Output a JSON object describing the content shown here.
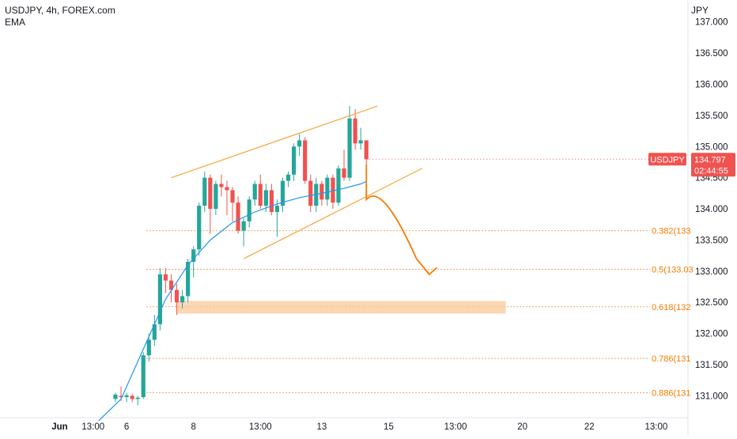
{
  "legend": {
    "symbol": "USDJPY, 4h, FOREX.com",
    "indicator": "EMA"
  },
  "currency": "JPY",
  "price_badge": {
    "symbol": "USDJPY",
    "price": "134.797",
    "countdown": "02:44:55",
    "value": 134.797
  },
  "colors": {
    "up": "#26a69a",
    "down": "#ef5350",
    "ema": "#2196f3",
    "drawing": "#f7a43b",
    "arrow": "#f57c00",
    "zone": "#f9c898",
    "fib_line": "#f5a25a",
    "fib_text": "#f57c00",
    "grid_text": "#131722",
    "badge_left": "#ef5350",
    "badge_right": "#ef5350"
  },
  "chart_data": {
    "type": "candlestick",
    "title": "USDJPY, 4h, FOREX.com",
    "ylabel": "JPY",
    "ylim": [
      130.65,
      137.25
    ],
    "y_ticks": [
      131.0,
      131.5,
      132.0,
      132.5,
      133.0,
      133.5,
      134.0,
      134.5,
      135.0,
      135.5,
      136.0,
      136.5,
      137.0
    ],
    "y_tick_labels": [
      "131.000",
      "131.500",
      "132.000",
      "132.500",
      "133.000",
      "133.500",
      "134.000",
      "134.500",
      "135.000",
      "135.500",
      "136.000",
      "136.500",
      "137.000"
    ],
    "x_ticks": [
      {
        "label": "Jun",
        "index": -10
      },
      {
        "label": "13:00",
        "index": -4
      },
      {
        "label": "6",
        "index": 2
      },
      {
        "label": "8",
        "index": 14
      },
      {
        "label": "13:00",
        "index": 26
      },
      {
        "label": "13",
        "index": 37
      },
      {
        "label": "15",
        "index": 49
      },
      {
        "label": "13:00",
        "index": 61
      },
      {
        "label": "20",
        "index": 73
      },
      {
        "label": "22",
        "index": 85
      },
      {
        "label": "13:00",
        "index": 97
      }
    ],
    "candles": [
      [
        130.95,
        131.05,
        130.9,
        131.02
      ],
      [
        131.0,
        131.15,
        130.92,
        130.98
      ],
      [
        130.98,
        131.05,
        130.9,
        131.01
      ],
      [
        131.0,
        131.03,
        130.9,
        130.95
      ],
      [
        130.95,
        131.0,
        130.85,
        130.97
      ],
      [
        130.98,
        131.7,
        130.95,
        131.65
      ],
      [
        131.65,
        132.0,
        131.55,
        131.9
      ],
      [
        131.9,
        132.3,
        131.8,
        132.15
      ],
      [
        132.15,
        133.05,
        132.05,
        132.95
      ],
      [
        132.95,
        133.05,
        132.65,
        132.85
      ],
      [
        132.85,
        132.95,
        132.5,
        132.7
      ],
      [
        132.7,
        132.8,
        132.3,
        132.5
      ],
      [
        132.5,
        132.7,
        132.4,
        132.6
      ],
      [
        132.6,
        133.2,
        132.5,
        133.15
      ],
      [
        133.15,
        133.4,
        132.9,
        133.35
      ],
      [
        133.35,
        134.1,
        133.25,
        134.05
      ],
      [
        134.05,
        134.6,
        133.95,
        134.5
      ],
      [
        134.5,
        134.55,
        133.6,
        134.0
      ],
      [
        134.0,
        134.45,
        133.9,
        134.4
      ],
      [
        134.4,
        134.55,
        134.2,
        134.35
      ],
      [
        134.35,
        134.45,
        133.9,
        134.3
      ],
      [
        134.3,
        134.35,
        133.8,
        134.1
      ],
      [
        134.1,
        134.2,
        133.6,
        133.65
      ],
      [
        133.65,
        133.85,
        133.4,
        133.8
      ],
      [
        133.8,
        134.2,
        133.7,
        134.15
      ],
      [
        134.15,
        134.45,
        134.05,
        134.4
      ],
      [
        134.4,
        134.55,
        134.0,
        134.05
      ],
      [
        134.05,
        134.4,
        133.95,
        134.3
      ],
      [
        134.3,
        134.4,
        133.9,
        133.95
      ],
      [
        133.95,
        134.15,
        133.55,
        134.05
      ],
      [
        134.05,
        134.5,
        133.95,
        134.45
      ],
      [
        134.45,
        134.6,
        134.35,
        134.55
      ],
      [
        134.55,
        135.05,
        134.45,
        135.0
      ],
      [
        135.0,
        135.2,
        134.85,
        135.1
      ],
      [
        135.1,
        135.15,
        134.4,
        134.45
      ],
      [
        134.45,
        134.55,
        133.95,
        134.05
      ],
      [
        134.05,
        134.5,
        133.95,
        134.4
      ],
      [
        134.4,
        134.45,
        134.05,
        134.15
      ],
      [
        134.15,
        134.55,
        134.05,
        134.5
      ],
      [
        134.5,
        134.55,
        134.0,
        134.1
      ],
      [
        134.1,
        134.7,
        134.05,
        134.65
      ],
      [
        134.65,
        134.95,
        134.45,
        134.5
      ],
      [
        134.5,
        135.65,
        134.45,
        135.45
      ],
      [
        135.45,
        135.6,
        134.95,
        135.05
      ],
      [
        135.05,
        135.3,
        134.95,
        135.1
      ],
      [
        135.1,
        135.1,
        134.65,
        134.797
      ]
    ],
    "ema": [
      [
        -3,
        130.6
      ],
      [
        1,
        130.95
      ],
      [
        5,
        131.75
      ],
      [
        9,
        132.55
      ],
      [
        13,
        133.1
      ],
      [
        17,
        133.5
      ],
      [
        21,
        133.78
      ],
      [
        25,
        133.95
      ],
      [
        29,
        134.08
      ],
      [
        33,
        134.18
      ],
      [
        37,
        134.25
      ],
      [
        41,
        134.33
      ],
      [
        44,
        134.4
      ],
      [
        45,
        134.44
      ]
    ],
    "fib_levels": [
      {
        "label": "0.382(133",
        "price": 133.65
      },
      {
        "label": "0.5(133.03",
        "price": 133.03
      },
      {
        "label": "0.618(132",
        "price": 132.43
      },
      {
        "label": "0.786(131",
        "price": 131.6
      },
      {
        "label": "0.886(131",
        "price": 131.05
      }
    ],
    "zone": {
      "price_top": 132.52,
      "price_bottom": 132.32,
      "start_index": 11,
      "end_index": 70
    },
    "fib_start_index": 2,
    "channel": {
      "upper": {
        "start": [
          10,
          134.5
        ],
        "end": [
          47,
          135.65
        ]
      },
      "lower": {
        "start": [
          23,
          133.2
        ],
        "end": [
          55,
          134.65
        ]
      }
    },
    "projection": [
      [
        45,
        134.7
      ],
      [
        45,
        134.15
      ],
      [
        47,
        134.35
      ],
      [
        50,
        134.0
      ],
      [
        54,
        133.2
      ],
      [
        57,
        132.95
      ]
    ]
  }
}
